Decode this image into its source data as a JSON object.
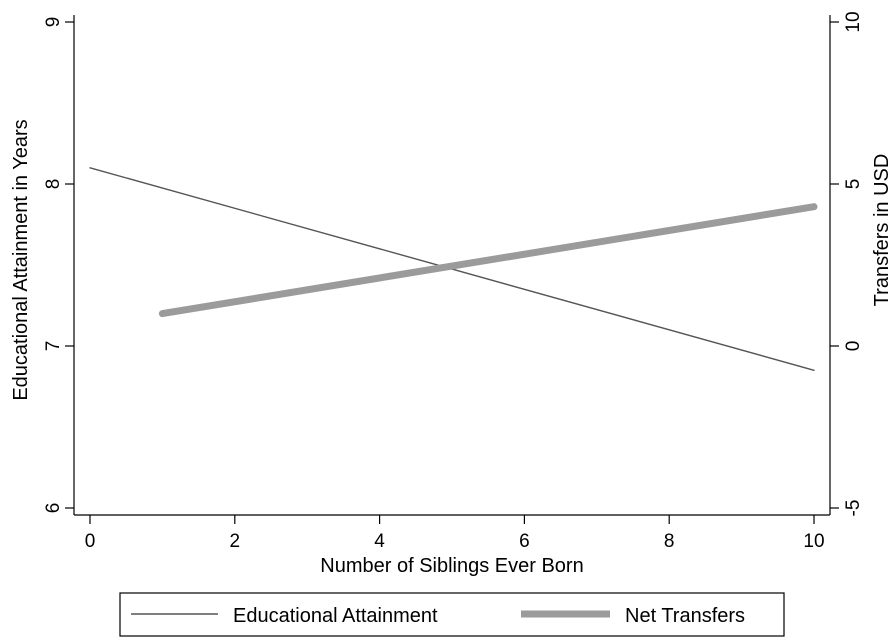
{
  "chart_data": {
    "type": "line",
    "title": "",
    "xlabel": "Number of Siblings Ever Born",
    "ylabel": "Educational Attainment in Years",
    "y2label": "Transfers in USD",
    "xlim": [
      0,
      10
    ],
    "ylim": [
      6,
      9
    ],
    "y2lim": [
      -5,
      10
    ],
    "x_ticks": [
      0,
      2,
      4,
      6,
      8,
      10
    ],
    "y_ticks": [
      6,
      7,
      8,
      9
    ],
    "y2_ticks": [
      -5,
      0,
      5,
      10
    ],
    "grid": false,
    "legend_position": "bottom",
    "series": [
      {
        "name": "Educational Attainment",
        "axis": "left",
        "color": "#555555",
        "x": [
          0,
          10
        ],
        "y": [
          8.1,
          6.85
        ]
      },
      {
        "name": "Net Transfers",
        "axis": "right",
        "color": "#9b9b9b",
        "x": [
          1,
          10
        ],
        "y": [
          1.0,
          4.3
        ]
      }
    ]
  }
}
